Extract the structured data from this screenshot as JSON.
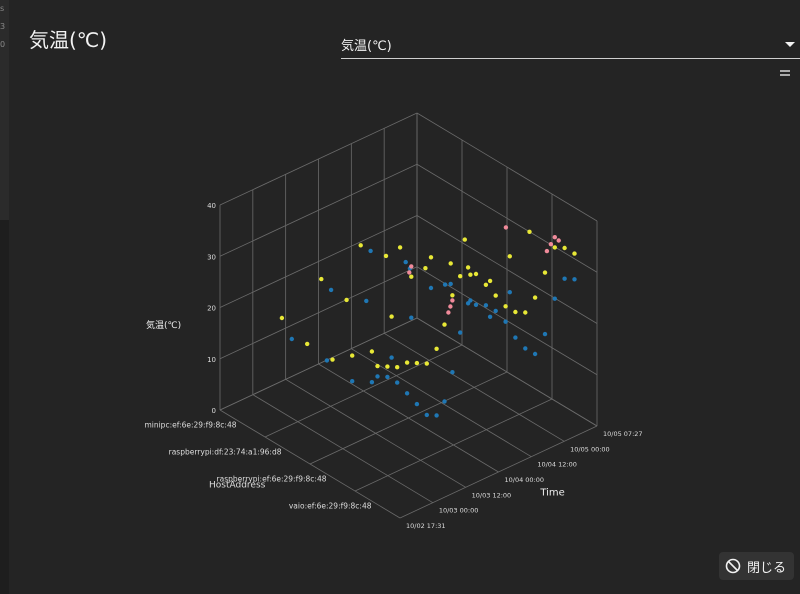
{
  "header": {
    "title": "気温(℃)"
  },
  "select": {
    "value": "気温(℃)"
  },
  "close_label": "閉じる",
  "icons": {
    "close": "no-entry-icon",
    "dropdown": "chevron-down-icon",
    "menu": "menu-icon"
  },
  "colors": {
    "background": "#242424",
    "grid": "#6a6a6a",
    "series": [
      "#1f77b4",
      "#e8e836",
      "#f08a9a"
    ]
  },
  "chart_data": {
    "type": "scatter",
    "projection": "3d",
    "title": "",
    "xlabel": "HostAddress",
    "ylabel": "Time",
    "zlabel": "気温(℃)",
    "hosts": [
      "vaio:ef:6e:29:f9:8c:48",
      "raspberrypi:ef:6e:29:f9:8c:48",
      "raspberrypi:df:23:74:a1:96:d8",
      "minipc:ef:6e:29:f9:8c:48"
    ],
    "time_ticks": [
      "10/02 17:31",
      "10/03 00:00",
      "10/03 12:00",
      "10/04 00:00",
      "10/04 12:00",
      "10/05 00:00",
      "10/05 07:27"
    ],
    "z_ticks": [
      0,
      10,
      20,
      30,
      40
    ],
    "zlim": [
      0,
      40
    ],
    "series": [
      {
        "values": [
          [
            0,
            0.0,
            25
          ],
          [
            0,
            0.05,
            24
          ],
          [
            0,
            0.1,
            22
          ],
          [
            0,
            0.15,
            19
          ],
          [
            0,
            0.2,
            16
          ],
          [
            0,
            0.25,
            13
          ],
          [
            0,
            0.3,
            12
          ],
          [
            0,
            0.34,
            14
          ],
          [
            0,
            0.38,
            19
          ],
          [
            0,
            0.42,
            26
          ],
          [
            0,
            0.46,
            31
          ],
          [
            0,
            0.5,
            30
          ],
          [
            0,
            0.55,
            29
          ],
          [
            0,
            0.6,
            27
          ],
          [
            0,
            0.65,
            24
          ],
          [
            0,
            0.7,
            20
          ],
          [
            0,
            0.75,
            17
          ],
          [
            0,
            0.8,
            15
          ],
          [
            0,
            0.85,
            18
          ],
          [
            0,
            0.9,
            24
          ],
          [
            0,
            0.95,
            27
          ],
          [
            0,
            1.0,
            26
          ],
          [
            1,
            0.1,
            17
          ],
          [
            1,
            0.2,
            15
          ],
          [
            1,
            0.3,
            18
          ],
          [
            1,
            0.4,
            24
          ],
          [
            1,
            0.5,
            28
          ],
          [
            1,
            0.6,
            27
          ],
          [
            1,
            0.7,
            22
          ],
          [
            1,
            0.8,
            17
          ],
          [
            1,
            0.9,
            20
          ],
          [
            2,
            0.2,
            14
          ],
          [
            2,
            0.4,
            22
          ],
          [
            2,
            0.6,
            26
          ],
          [
            2,
            0.8,
            18
          ],
          [
            3,
            0.25,
            12
          ],
          [
            3,
            0.45,
            18
          ],
          [
            3,
            0.65,
            22
          ],
          [
            3,
            0.85,
            15
          ]
        ]
      },
      {
        "values": [
          [
            0,
            0.0,
            27
          ],
          [
            0,
            0.05,
            26
          ],
          [
            0,
            0.1,
            25
          ],
          [
            0,
            0.15,
            25
          ],
          [
            0,
            0.2,
            24
          ],
          [
            0,
            0.25,
            23
          ],
          [
            0,
            0.3,
            25
          ],
          [
            0,
            0.34,
            29
          ],
          [
            0,
            0.38,
            34
          ],
          [
            0,
            0.42,
            37
          ],
          [
            0,
            0.46,
            38
          ],
          [
            0,
            0.5,
            36
          ],
          [
            0,
            0.55,
            33
          ],
          [
            0,
            0.6,
            30
          ],
          [
            0,
            0.65,
            27
          ],
          [
            0,
            0.7,
            25
          ],
          [
            0,
            0.75,
            24
          ],
          [
            0,
            0.8,
            26
          ],
          [
            0,
            0.85,
            30
          ],
          [
            0,
            0.9,
            34
          ],
          [
            0,
            0.95,
            33
          ],
          [
            0,
            1.0,
            31
          ],
          [
            1,
            0.0,
            23
          ],
          [
            1,
            0.1,
            22
          ],
          [
            1,
            0.2,
            21
          ],
          [
            1,
            0.3,
            26
          ],
          [
            1,
            0.4,
            32
          ],
          [
            1,
            0.5,
            34
          ],
          [
            1,
            0.6,
            31
          ],
          [
            1,
            0.7,
            27
          ],
          [
            1,
            0.8,
            24
          ],
          [
            1,
            0.9,
            27
          ],
          [
            1,
            1.0,
            30
          ],
          [
            2,
            0.1,
            19
          ],
          [
            2,
            0.3,
            24
          ],
          [
            2,
            0.5,
            29
          ],
          [
            2,
            0.7,
            23
          ],
          [
            2,
            0.9,
            25
          ],
          [
            3,
            0.2,
            17
          ],
          [
            3,
            0.4,
            21
          ],
          [
            3,
            0.6,
            24
          ],
          [
            3,
            0.8,
            20
          ]
        ]
      },
      {
        "values": [
          [
            0,
            0.36,
            31
          ],
          [
            0,
            0.37,
            32
          ],
          [
            0,
            0.38,
            33
          ],
          [
            1,
            0.39,
            33
          ],
          [
            1,
            0.4,
            34
          ],
          [
            0,
            0.86,
            34
          ],
          [
            0,
            0.88,
            35
          ],
          [
            0,
            0.9,
            36
          ],
          [
            0,
            0.92,
            35
          ],
          [
            1,
            0.88,
            33
          ]
        ]
      }
    ]
  }
}
